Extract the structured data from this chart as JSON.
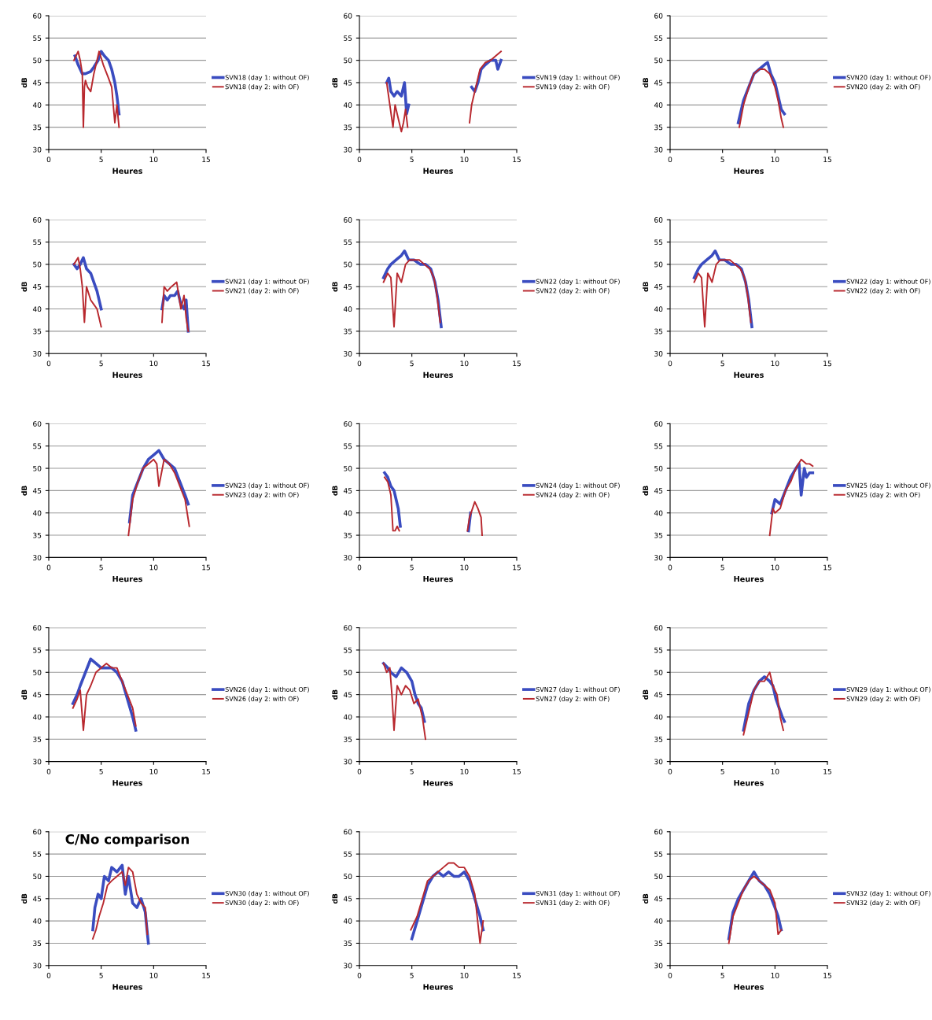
{
  "chart_data": [
    {
      "type": "line",
      "xlabel": "Heures",
      "ylabel": "dB",
      "xlim": [
        0,
        15
      ],
      "ylim": [
        30,
        60
      ],
      "xticks": [
        0,
        5,
        10,
        15
      ],
      "yticks": [
        30,
        35,
        40,
        45,
        50,
        55,
        60
      ],
      "grid": "y",
      "legend": "right",
      "line_style": "solid",
      "series": [
        {
          "name": "SVN18 (day 1: without OF)",
          "color": "#3a4cc0",
          "x": [
            2.5,
            2.8,
            3.0,
            3.2,
            3.5,
            4.0,
            4.3,
            4.7,
            5.0,
            5.3,
            5.7,
            6.0,
            6.3,
            6.5,
            6.7
          ],
          "values": [
            51,
            49,
            48,
            47,
            47,
            47.5,
            48.5,
            50,
            52,
            51,
            50,
            48,
            45,
            42,
            38
          ]
        },
        {
          "name": "SVN18 (day 2: with OF)",
          "color": "#b8282e",
          "x": [
            2.4,
            2.8,
            3.0,
            3.2,
            3.3,
            3.4,
            3.5,
            3.7,
            4.0,
            4.3,
            4.8,
            5.2,
            5.7,
            6.0,
            6.3,
            6.5,
            6.7
          ],
          "values": [
            50,
            52,
            50,
            47,
            35,
            44,
            45.5,
            44,
            43,
            47,
            52,
            49,
            46,
            44,
            36,
            40,
            35
          ]
        }
      ]
    },
    {
      "type": "line",
      "xlabel": "Heures",
      "ylabel": "dB",
      "xlim": [
        0,
        15
      ],
      "ylim": [
        30,
        60
      ],
      "xticks": [
        0,
        5,
        10,
        15
      ],
      "yticks": [
        30,
        35,
        40,
        45,
        50,
        55,
        60
      ],
      "grid": "y",
      "legend": "right",
      "line_style": "solid",
      "series": [
        {
          "name": "SVN19 (day 1: without OF)",
          "color": "#3a4cc0",
          "x": [
            2.6,
            2.8,
            3.0,
            3.3,
            3.6,
            4.0,
            4.3,
            4.5,
            4.7,
            7.5,
            10.7,
            11.0,
            11.3,
            11.6,
            12.0,
            12.5,
            13.0,
            13.2,
            13.5
          ],
          "values": [
            45,
            46,
            43,
            42,
            43,
            42,
            45,
            38,
            40,
            null,
            44,
            43,
            45,
            48,
            49,
            50,
            50,
            48,
            50
          ]
        },
        {
          "name": "SVN19 (day 2: with OF)",
          "color": "#b8282e",
          "x": [
            2.6,
            2.9,
            3.2,
            3.4,
            3.6,
            3.8,
            4.0,
            4.2,
            4.4,
            4.6,
            7.5,
            10.5,
            10.7,
            11.0,
            11.5,
            12.0,
            12.5,
            13.0,
            13.5
          ],
          "values": [
            45,
            40,
            35,
            40,
            38,
            36,
            34,
            36,
            39,
            35,
            null,
            36,
            40,
            43,
            48,
            49.5,
            50,
            51,
            52
          ]
        }
      ]
    },
    {
      "type": "line",
      "xlabel": "Heures",
      "ylabel": "dB",
      "xlim": [
        0,
        15
      ],
      "ylim": [
        30,
        60
      ],
      "xticks": [
        0,
        5,
        10,
        15
      ],
      "yticks": [
        30,
        35,
        40,
        45,
        50,
        55,
        60
      ],
      "grid": "y",
      "legend": "right",
      "line_style": "solid",
      "series": [
        {
          "name": "SVN20 (day 1: without OF)",
          "color": "#3a4cc0",
          "x": [
            6.5,
            7,
            7.5,
            8,
            8.5,
            9,
            9.3,
            9.6,
            10,
            10.3,
            10.6,
            10.9
          ],
          "values": [
            36,
            41,
            44,
            47,
            48,
            49,
            49.5,
            47,
            45,
            42,
            39,
            38
          ]
        },
        {
          "name": "SVN20 (day 2: with OF)",
          "color": "#b8282e",
          "x": [
            6.6,
            7,
            7.5,
            8,
            8.5,
            9,
            9.5,
            10,
            10.3,
            10.6,
            10.8
          ],
          "values": [
            35,
            40,
            44,
            47,
            48,
            48,
            47,
            44,
            41,
            37,
            35
          ]
        }
      ]
    },
    {
      "type": "line",
      "xlabel": "Heures",
      "ylabel": "dB",
      "xlim": [
        0,
        15
      ],
      "ylim": [
        30,
        60
      ],
      "xticks": [
        0,
        5,
        10,
        15
      ],
      "yticks": [
        30,
        35,
        40,
        45,
        50,
        55,
        60
      ],
      "grid": "y",
      "legend": "right",
      "line_style": "solid",
      "series": [
        {
          "name": "SVN21 (day 1: without OF)",
          "color": "#3a4cc0",
          "x": [
            2.4,
            2.7,
            3.0,
            3.3,
            3.6,
            4.0,
            4.3,
            4.6,
            4.8,
            5.0,
            8,
            10.8,
            11.0,
            11.3,
            11.6,
            12.0,
            12.3,
            12.6,
            12.9,
            13.1,
            13.3
          ],
          "values": [
            50,
            49,
            50,
            51.5,
            49,
            48,
            46,
            44,
            42,
            40,
            null,
            40,
            43,
            42,
            43,
            43,
            44,
            41,
            40,
            42,
            35
          ]
        },
        {
          "name": "SVN21 (day 2: with OF)",
          "color": "#b8282e",
          "x": [
            2.4,
            2.8,
            3.0,
            3.2,
            3.4,
            3.6,
            4.0,
            4.3,
            4.6,
            5.0,
            8,
            10.8,
            11.0,
            11.3,
            11.7,
            12.2,
            12.6,
            12.9,
            13.1,
            13.3
          ],
          "values": [
            50,
            51.5,
            49,
            45,
            37,
            45,
            42,
            41,
            40,
            36,
            null,
            37,
            45,
            44,
            45,
            46,
            40,
            43,
            38,
            35
          ]
        }
      ]
    },
    {
      "type": "line",
      "xlabel": "Heures",
      "ylabel": "dB",
      "xlim": [
        0,
        15
      ],
      "ylim": [
        30,
        60
      ],
      "xticks": [
        0,
        5,
        10,
        15
      ],
      "yticks": [
        30,
        35,
        40,
        45,
        50,
        55,
        60
      ],
      "grid": "y",
      "legend": "right",
      "line_style": "solid",
      "series": [
        {
          "name": "SVN22 (day 1: without OF)",
          "color": "#3a4cc0",
          "x": [
            2.3,
            2.7,
            3.0,
            3.5,
            4.0,
            4.3,
            4.7,
            5.2,
            5.8,
            6.3,
            6.8,
            7.2,
            7.5,
            7.8
          ],
          "values": [
            47,
            49,
            50,
            51,
            52,
            53,
            51,
            51,
            50,
            50,
            49,
            46,
            42,
            36
          ]
        },
        {
          "name": "SVN22 (day 2: with OF)",
          "color": "#b8282e",
          "x": [
            2.3,
            2.7,
            3.0,
            3.3,
            3.6,
            4.0,
            4.4,
            4.8,
            5.2,
            5.7,
            6.2,
            6.7,
            7.1,
            7.4,
            7.7
          ],
          "values": [
            46,
            48,
            47,
            36,
            48,
            46,
            50,
            51,
            51,
            51,
            50,
            49,
            47,
            43,
            37
          ]
        }
      ]
    },
    {
      "type": "line",
      "xlabel": "Heures",
      "ylabel": "dB",
      "xlim": [
        0,
        15
      ],
      "ylim": [
        30,
        60
      ],
      "xticks": [
        0,
        5,
        10,
        15
      ],
      "yticks": [
        30,
        35,
        40,
        45,
        50,
        55,
        60
      ],
      "grid": "y",
      "legend": "right",
      "line_style": "solid",
      "series": [
        {
          "name": "SVN22 (day 1: without OF)",
          "color": "#3a4cc0",
          "x": [
            2.3,
            2.7,
            3.0,
            3.5,
            4.0,
            4.3,
            4.7,
            5.2,
            5.8,
            6.3,
            6.8,
            7.2,
            7.5,
            7.8
          ],
          "values": [
            47,
            49,
            50,
            51,
            52,
            53,
            51,
            51,
            50,
            50,
            49,
            46,
            42,
            36
          ]
        },
        {
          "name": "SVN22 (day 2: with OF)",
          "color": "#b8282e",
          "x": [
            2.3,
            2.7,
            3.0,
            3.3,
            3.6,
            4.0,
            4.4,
            4.8,
            5.2,
            5.7,
            6.2,
            6.7,
            7.1,
            7.4,
            7.7
          ],
          "values": [
            46,
            48,
            47,
            36,
            48,
            46,
            50,
            51,
            51,
            51,
            50,
            49,
            47,
            43,
            37
          ]
        }
      ]
    },
    {
      "type": "line",
      "xlabel": "Heures",
      "ylabel": "dB",
      "xlim": [
        0,
        15
      ],
      "ylim": [
        30,
        60
      ],
      "xticks": [
        0,
        5,
        10,
        15
      ],
      "yticks": [
        30,
        35,
        40,
        45,
        50,
        55,
        60
      ],
      "grid": "y",
      "legend": "right",
      "line_style": "solid",
      "series": [
        {
          "name": "SVN23 (day 1: without OF)",
          "color": "#3a4cc0",
          "x": [
            7.7,
            8,
            8.5,
            9,
            9.5,
            10,
            10.5,
            11,
            11.5,
            12,
            12.5,
            13,
            13.3
          ],
          "values": [
            38,
            44,
            47,
            50,
            52,
            53,
            54,
            52,
            51,
            50,
            47,
            44,
            42
          ]
        },
        {
          "name": "SVN23 (day 2: with OF)",
          "color": "#b8282e",
          "x": [
            7.6,
            8,
            8.5,
            9,
            9.5,
            10,
            10.3,
            10.5,
            11,
            11.5,
            12,
            12.5,
            13,
            13.4
          ],
          "values": [
            35,
            43,
            47,
            50,
            51,
            52,
            51,
            46,
            52,
            51,
            49,
            46,
            43,
            37
          ]
        }
      ]
    },
    {
      "type": "line",
      "xlabel": "Heures",
      "ylabel": "dB",
      "xlim": [
        0,
        15
      ],
      "ylim": [
        30,
        60
      ],
      "xticks": [
        0,
        5,
        10,
        15
      ],
      "yticks": [
        30,
        35,
        40,
        45,
        50,
        55,
        60
      ],
      "grid": "y",
      "legend": "right",
      "line_style": "solid",
      "series": [
        {
          "name": "SVN24 (day 1: without OF)",
          "color": "#3a4cc0",
          "x": [
            2.4,
            2.7,
            3.0,
            3.3,
            3.5,
            3.7,
            3.9,
            7,
            10.4,
            10.6
          ],
          "values": [
            49,
            48,
            46,
            45,
            43,
            41,
            37,
            null,
            36,
            40
          ]
        },
        {
          "name": "SVN24 (day 2: with OF)",
          "color": "#b8282e",
          "x": [
            2.4,
            2.7,
            3.0,
            3.1,
            3.2,
            3.4,
            3.6,
            3.8,
            7,
            10.3,
            10.5,
            11.0,
            11.3,
            11.6,
            11.7
          ],
          "values": [
            48,
            47,
            44,
            40,
            36,
            36,
            37,
            36,
            null,
            36,
            39,
            42.5,
            41,
            39,
            35
          ]
        }
      ]
    },
    {
      "type": "line",
      "xlabel": "Heures",
      "ylabel": "dB",
      "xlim": [
        0,
        15
      ],
      "ylim": [
        30,
        60
      ],
      "xticks": [
        0,
        5,
        10,
        15
      ],
      "yticks": [
        30,
        35,
        40,
        45,
        50,
        55,
        60
      ],
      "grid": "y",
      "legend": "right",
      "line_style": "solid",
      "series": [
        {
          "name": "SVN25 (day 1: without OF)",
          "color": "#3a4cc0",
          "x": [
            9.7,
            10,
            10.5,
            11,
            11.5,
            12,
            12.3,
            12.5,
            12.8,
            13,
            13.3,
            13.6
          ],
          "values": [
            40,
            43,
            42,
            45,
            48,
            50,
            51,
            44,
            50,
            48,
            49,
            49
          ]
        },
        {
          "name": "SVN25 (day 2: with OF)",
          "color": "#b8282e",
          "x": [
            9.5,
            9.8,
            10,
            10.5,
            11,
            11.5,
            12,
            12.5,
            13,
            13.3,
            13.6
          ],
          "values": [
            35,
            41,
            40,
            41,
            45,
            47,
            50,
            52,
            51,
            51,
            50.5
          ]
        }
      ]
    },
    {
      "type": "line",
      "xlabel": "Heures",
      "ylabel": "dB",
      "xlim": [
        0,
        15
      ],
      "ylim": [
        30,
        60
      ],
      "xticks": [
        0,
        5,
        10,
        15
      ],
      "yticks": [
        30,
        35,
        40,
        45,
        50,
        55,
        60
      ],
      "grid": "y",
      "legend": "right",
      "line_style": "solid",
      "series": [
        {
          "name": "SVN26 (day 1: without OF)",
          "color": "#3a4cc0",
          "x": [
            2.3,
            2.7,
            3,
            3.5,
            4,
            4.5,
            5,
            5.5,
            6,
            6.5,
            7,
            7.5,
            8,
            8.3
          ],
          "values": [
            43,
            45,
            47,
            50,
            53,
            52,
            51,
            51,
            51,
            50,
            48,
            44,
            40,
            37
          ]
        },
        {
          "name": "SVN26 (day 2: with OF)",
          "color": "#b8282e",
          "x": [
            2.3,
            2.7,
            3,
            3.3,
            3.6,
            4,
            4.5,
            5,
            5.5,
            6,
            6.5,
            7,
            7.5,
            8,
            8.3
          ],
          "values": [
            42,
            44,
            46,
            37,
            45,
            47,
            50,
            51,
            52,
            51,
            51,
            48,
            45,
            42,
            38
          ]
        }
      ]
    },
    {
      "type": "line",
      "xlabel": "Heures",
      "ylabel": "dB",
      "xlim": [
        0,
        15
      ],
      "ylim": [
        30,
        60
      ],
      "xticks": [
        0,
        5,
        10,
        15
      ],
      "yticks": [
        30,
        35,
        40,
        45,
        50,
        55,
        60
      ],
      "grid": "y",
      "legend": "right",
      "line_style": "solid",
      "series": [
        {
          "name": "SVN27 (day 1: without OF)",
          "color": "#3a4cc0",
          "x": [
            2.3,
            2.7,
            3,
            3.5,
            4,
            4.5,
            5,
            5.3,
            5.6,
            5.9,
            6.2
          ],
          "values": [
            52,
            51,
            50,
            49,
            51,
            50,
            48,
            45,
            43,
            42,
            39
          ]
        },
        {
          "name": "SVN27 (day 2: with OF)",
          "color": "#b8282e",
          "x": [
            2.3,
            2.6,
            2.9,
            3.1,
            3.3,
            3.6,
            4,
            4.4,
            4.8,
            5.2,
            5.6,
            6,
            6.3
          ],
          "values": [
            52,
            50,
            51,
            45,
            37,
            47,
            45,
            47,
            46,
            43,
            44,
            40,
            35
          ]
        }
      ]
    },
    {
      "type": "line",
      "xlabel": "Heures",
      "ylabel": "dB",
      "xlim": [
        0,
        15
      ],
      "ylim": [
        30,
        60
      ],
      "xticks": [
        0,
        5,
        10,
        15
      ],
      "yticks": [
        30,
        35,
        40,
        45,
        50,
        55,
        60
      ],
      "grid": "y",
      "legend": "right",
      "line_style": "solid",
      "series": [
        {
          "name": "SVN29 (day 1: without OF)",
          "color": "#3a4cc0",
          "x": [
            7,
            7.5,
            8,
            8.5,
            9,
            9.5,
            9.8,
            10.1,
            10.4,
            10.7,
            10.9
          ],
          "values": [
            37,
            43,
            46,
            48,
            49,
            48,
            47,
            44,
            42,
            40,
            39
          ]
        },
        {
          "name": "SVN29 (day 2: with OF)",
          "color": "#b8282e",
          "x": [
            7,
            7.5,
            8,
            8.5,
            9,
            9.5,
            9.8,
            10.2,
            10.5,
            10.8
          ],
          "values": [
            36,
            41,
            46,
            48,
            48,
            50,
            47,
            45,
            40,
            37
          ]
        }
      ]
    },
    {
      "type": "line",
      "title": "C/No comparison",
      "xlabel": "Heures",
      "ylabel": "dB",
      "xlim": [
        0,
        15
      ],
      "ylim": [
        30,
        60
      ],
      "xticks": [
        0,
        5,
        10,
        15
      ],
      "yticks": [
        30,
        35,
        40,
        45,
        50,
        55,
        60
      ],
      "grid": "y",
      "legend": "right",
      "line_style": "solid",
      "series": [
        {
          "name": "SVN30 (day 1: without OF)",
          "color": "#3a4cc0",
          "x": [
            4.2,
            4.4,
            4.7,
            5,
            5.3,
            5.7,
            6,
            6.5,
            7,
            7.3,
            7.6,
            8,
            8.4,
            8.8,
            9.2,
            9.5
          ],
          "values": [
            38,
            43,
            46,
            45,
            50,
            49,
            52,
            51,
            52.5,
            46,
            50,
            44,
            43,
            45,
            42,
            35
          ]
        },
        {
          "name": "SVN30 (day 2: with OF)",
          "color": "#b8282e",
          "x": [
            4.2,
            4.5,
            4.8,
            5.2,
            5.6,
            6,
            6.5,
            7,
            7.3,
            7.6,
            8,
            8.4,
            8.8,
            9.2,
            9.4
          ],
          "values": [
            36,
            38,
            41,
            44,
            48,
            49,
            50,
            51,
            48,
            52,
            51,
            46,
            44,
            43,
            37
          ]
        }
      ]
    },
    {
      "type": "line",
      "xlabel": "Heures",
      "ylabel": "dB",
      "xlim": [
        0,
        15
      ],
      "ylim": [
        30,
        60
      ],
      "xticks": [
        0,
        5,
        10,
        15
      ],
      "yticks": [
        30,
        35,
        40,
        45,
        50,
        55,
        60
      ],
      "grid": "y",
      "legend": "right",
      "line_style": "solid",
      "series": [
        {
          "name": "SVN31 (day 1: without OF)",
          "color": "#3a4cc0",
          "x": [
            5,
            5.5,
            6,
            6.5,
            7,
            7.5,
            8,
            8.5,
            9,
            9.5,
            10,
            10.5,
            11,
            11.5,
            11.8
          ],
          "values": [
            36,
            40,
            44,
            48,
            50,
            51,
            50,
            51,
            50,
            50,
            51,
            49,
            45,
            41,
            38
          ]
        },
        {
          "name": "SVN31 (day 2: with OF)",
          "color": "#b8282e",
          "x": [
            4.9,
            5.5,
            6,
            6.5,
            7,
            7.5,
            8,
            8.5,
            9,
            9.5,
            10,
            10.5,
            11,
            11.5,
            11.8
          ],
          "values": [
            38,
            41,
            45,
            49,
            50,
            51,
            52,
            53,
            53,
            52,
            52,
            50,
            46,
            35,
            40
          ]
        }
      ]
    },
    {
      "type": "line",
      "xlabel": "Heures",
      "ylabel": "dB",
      "xlim": [
        0,
        15
      ],
      "ylim": [
        30,
        60
      ],
      "xticks": [
        0,
        5,
        10,
        15
      ],
      "yticks": [
        30,
        35,
        40,
        45,
        50,
        55,
        60
      ],
      "grid": "y",
      "legend": "right",
      "line_style": "solid",
      "series": [
        {
          "name": "SVN32 (day 1: without OF)",
          "color": "#3a4cc0",
          "x": [
            5.6,
            6,
            6.5,
            7,
            7.5,
            8,
            8.5,
            9,
            9.5,
            10,
            10.3,
            10.6
          ],
          "values": [
            36,
            42,
            45,
            47,
            49,
            51,
            49,
            48,
            46,
            43,
            41,
            38
          ]
        },
        {
          "name": "SVN32 (day 2: with OF)",
          "color": "#b8282e",
          "x": [
            5.6,
            6,
            6.5,
            7,
            7.5,
            8,
            8.5,
            9,
            9.5,
            10,
            10.3,
            10.6
          ],
          "values": [
            35,
            41,
            44,
            47,
            49,
            50,
            49,
            48,
            47,
            44,
            37,
            38
          ]
        }
      ]
    }
  ]
}
